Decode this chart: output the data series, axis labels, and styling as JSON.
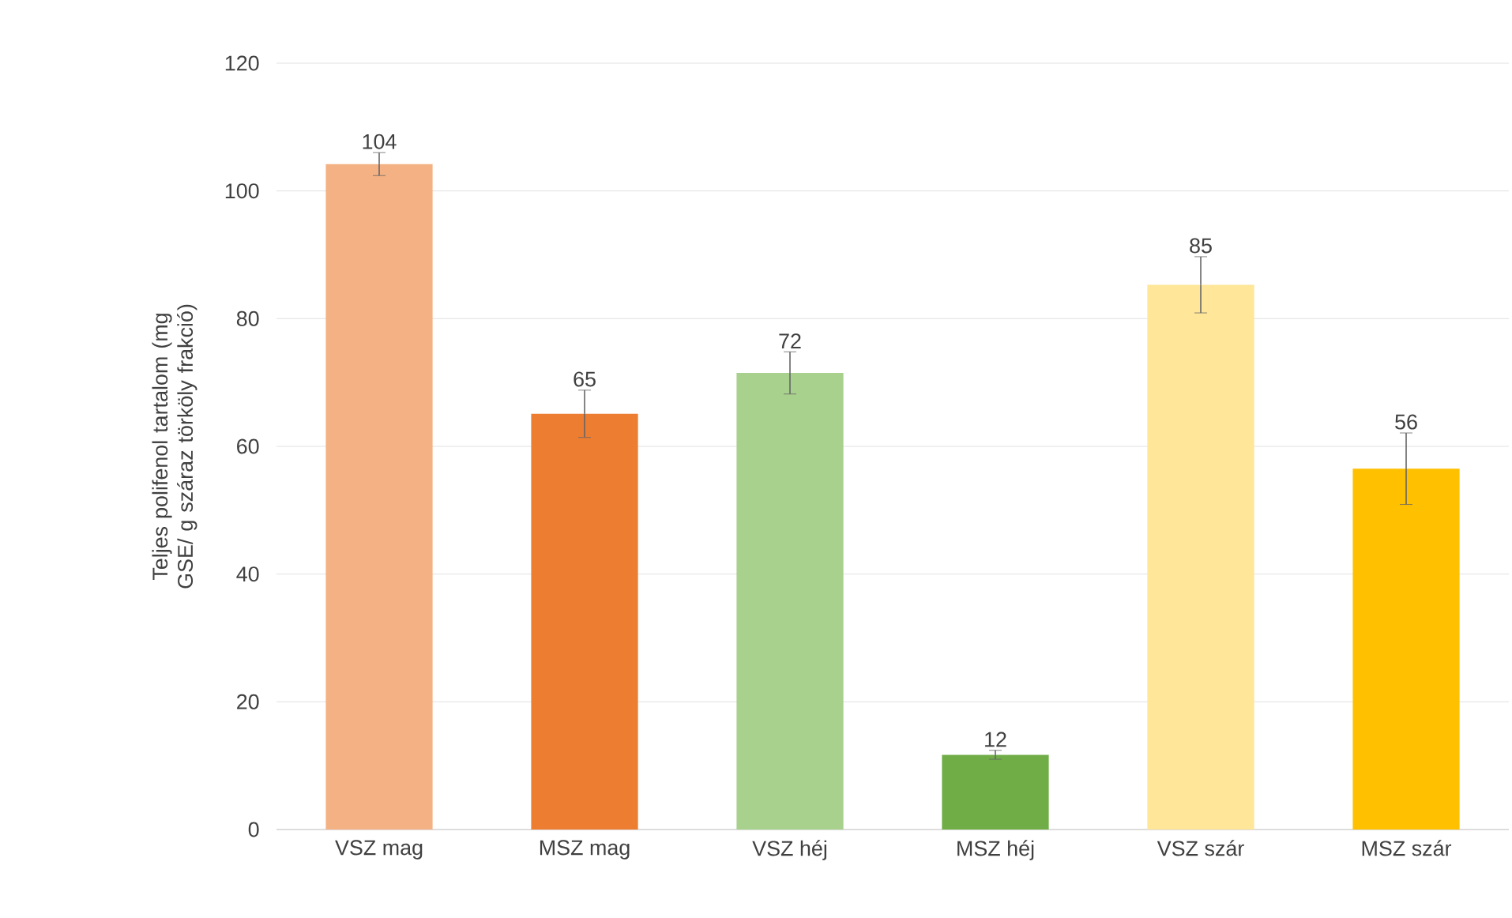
{
  "chart_data": {
    "type": "bar",
    "ylabel": "Teljes polifenol tartalom (mg GSE/ g száraz törköly frakció)",
    "categories": [
      "VSZ mag",
      "MSZ mag",
      "VSZ héj",
      "MSZ héj",
      "VSZ szár",
      "MSZ szár"
    ],
    "values": [
      104.2,
      65.1,
      71.5,
      11.7,
      85.3,
      56.5
    ],
    "value_labels": [
      "104",
      "65",
      "72",
      "12",
      "85",
      "56"
    ],
    "errors": [
      1.8,
      3.7,
      3.3,
      0.7,
      4.4,
      5.6
    ],
    "colors": [
      "#f4b183",
      "#ed7d31",
      "#a9d18e",
      "#70ad47",
      "#ffe699",
      "#ffc000"
    ],
    "ylim": [
      0,
      120
    ],
    "yticks": [
      0,
      20,
      40,
      60,
      80,
      100,
      120
    ],
    "grid": "y"
  }
}
